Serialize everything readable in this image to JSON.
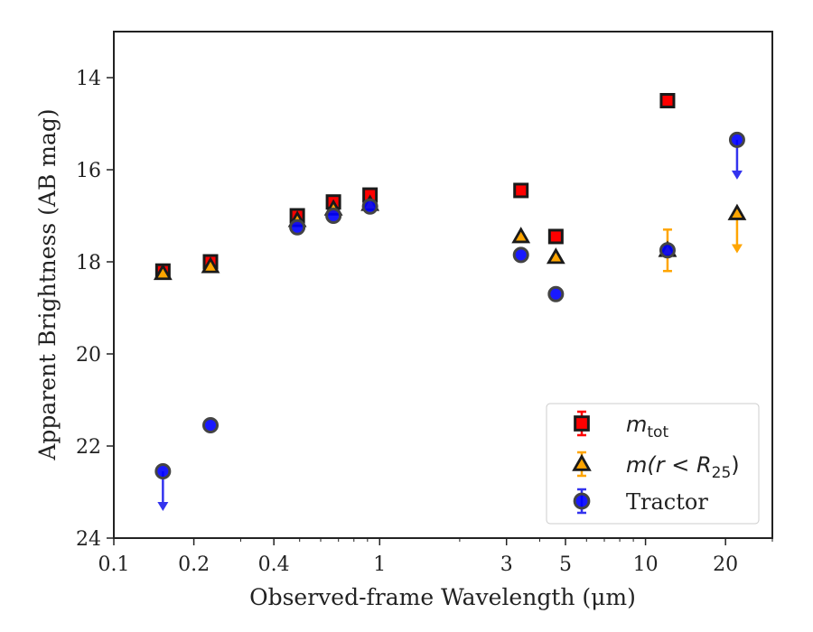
{
  "colors": {
    "total": "#ff0000",
    "r25": "#ffa500",
    "tractor": "#0000ff",
    "edge": "#1a1a1a",
    "tractor_errorbar": "#3333ee"
  },
  "chart_data": {
    "type": "scatter",
    "xlabel": "Observed-frame Wavelength (μm)",
    "ylabel": "Apparent Brightness (AB mag)",
    "xscale": "log",
    "xlim": [
      0.1,
      30
    ],
    "ylim": [
      24,
      13
    ],
    "y_inverted": true,
    "grid": false,
    "legend_position": "lower-right",
    "x_ticks": [
      {
        "value": 0.1,
        "label": "0.1"
      },
      {
        "value": 0.2,
        "label": "0.2"
      },
      {
        "value": 0.4,
        "label": "0.4"
      },
      {
        "value": 1,
        "label": "1"
      },
      {
        "value": 3,
        "label": "3"
      },
      {
        "value": 5,
        "label": "5"
      },
      {
        "value": 10,
        "label": "10"
      },
      {
        "value": 20,
        "label": "20"
      }
    ],
    "y_ticks": [
      {
        "value": 14,
        "label": "14"
      },
      {
        "value": 16,
        "label": "16"
      },
      {
        "value": 18,
        "label": "18"
      },
      {
        "value": 20,
        "label": "20"
      },
      {
        "value": 22,
        "label": "22"
      },
      {
        "value": 24,
        "label": "24"
      }
    ],
    "series": [
      {
        "name": "m_tot",
        "legend_main": "m",
        "legend_sub": "tot",
        "marker": "square",
        "color_key": "total",
        "points": [
          {
            "x": 0.153,
            "y": 18.2
          },
          {
            "x": 0.231,
            "y": 18.0
          },
          {
            "x": 0.49,
            "y": 17.0
          },
          {
            "x": 0.67,
            "y": 16.7
          },
          {
            "x": 0.92,
            "y": 16.55
          },
          {
            "x": 3.4,
            "y": 16.45
          },
          {
            "x": 4.6,
            "y": 17.45
          },
          {
            "x": 12.1,
            "y": 14.5
          }
        ]
      },
      {
        "name": "m(r < R_25)",
        "legend_main": "m(r < R",
        "legend_sub": "25",
        "legend_close": ")",
        "marker": "triangle",
        "color_key": "r25",
        "points": [
          {
            "x": 0.153,
            "y": 18.25
          },
          {
            "x": 0.231,
            "y": 18.1
          },
          {
            "x": 0.49,
            "y": 17.1
          },
          {
            "x": 0.67,
            "y": 16.85
          },
          {
            "x": 0.92,
            "y": 16.75
          },
          {
            "x": 3.4,
            "y": 17.45
          },
          {
            "x": 4.6,
            "y": 17.9
          },
          {
            "x": 12.1,
            "y": 17.75,
            "yerr": 0.45
          },
          {
            "x": 22.1,
            "y": 16.95,
            "upper_limit": true
          }
        ]
      },
      {
        "name": "Tractor",
        "legend_main": "Tractor",
        "marker": "circle",
        "color_key": "tractor",
        "points": [
          {
            "x": 0.153,
            "y": 22.55,
            "upper_limit": true
          },
          {
            "x": 0.231,
            "y": 21.55
          },
          {
            "x": 0.49,
            "y": 17.25
          },
          {
            "x": 0.67,
            "y": 17.0
          },
          {
            "x": 0.92,
            "y": 16.8
          },
          {
            "x": 3.4,
            "y": 17.85
          },
          {
            "x": 4.6,
            "y": 18.7
          },
          {
            "x": 12.1,
            "y": 17.75
          },
          {
            "x": 22.1,
            "y": 15.35,
            "upper_limit": true
          }
        ]
      }
    ]
  }
}
